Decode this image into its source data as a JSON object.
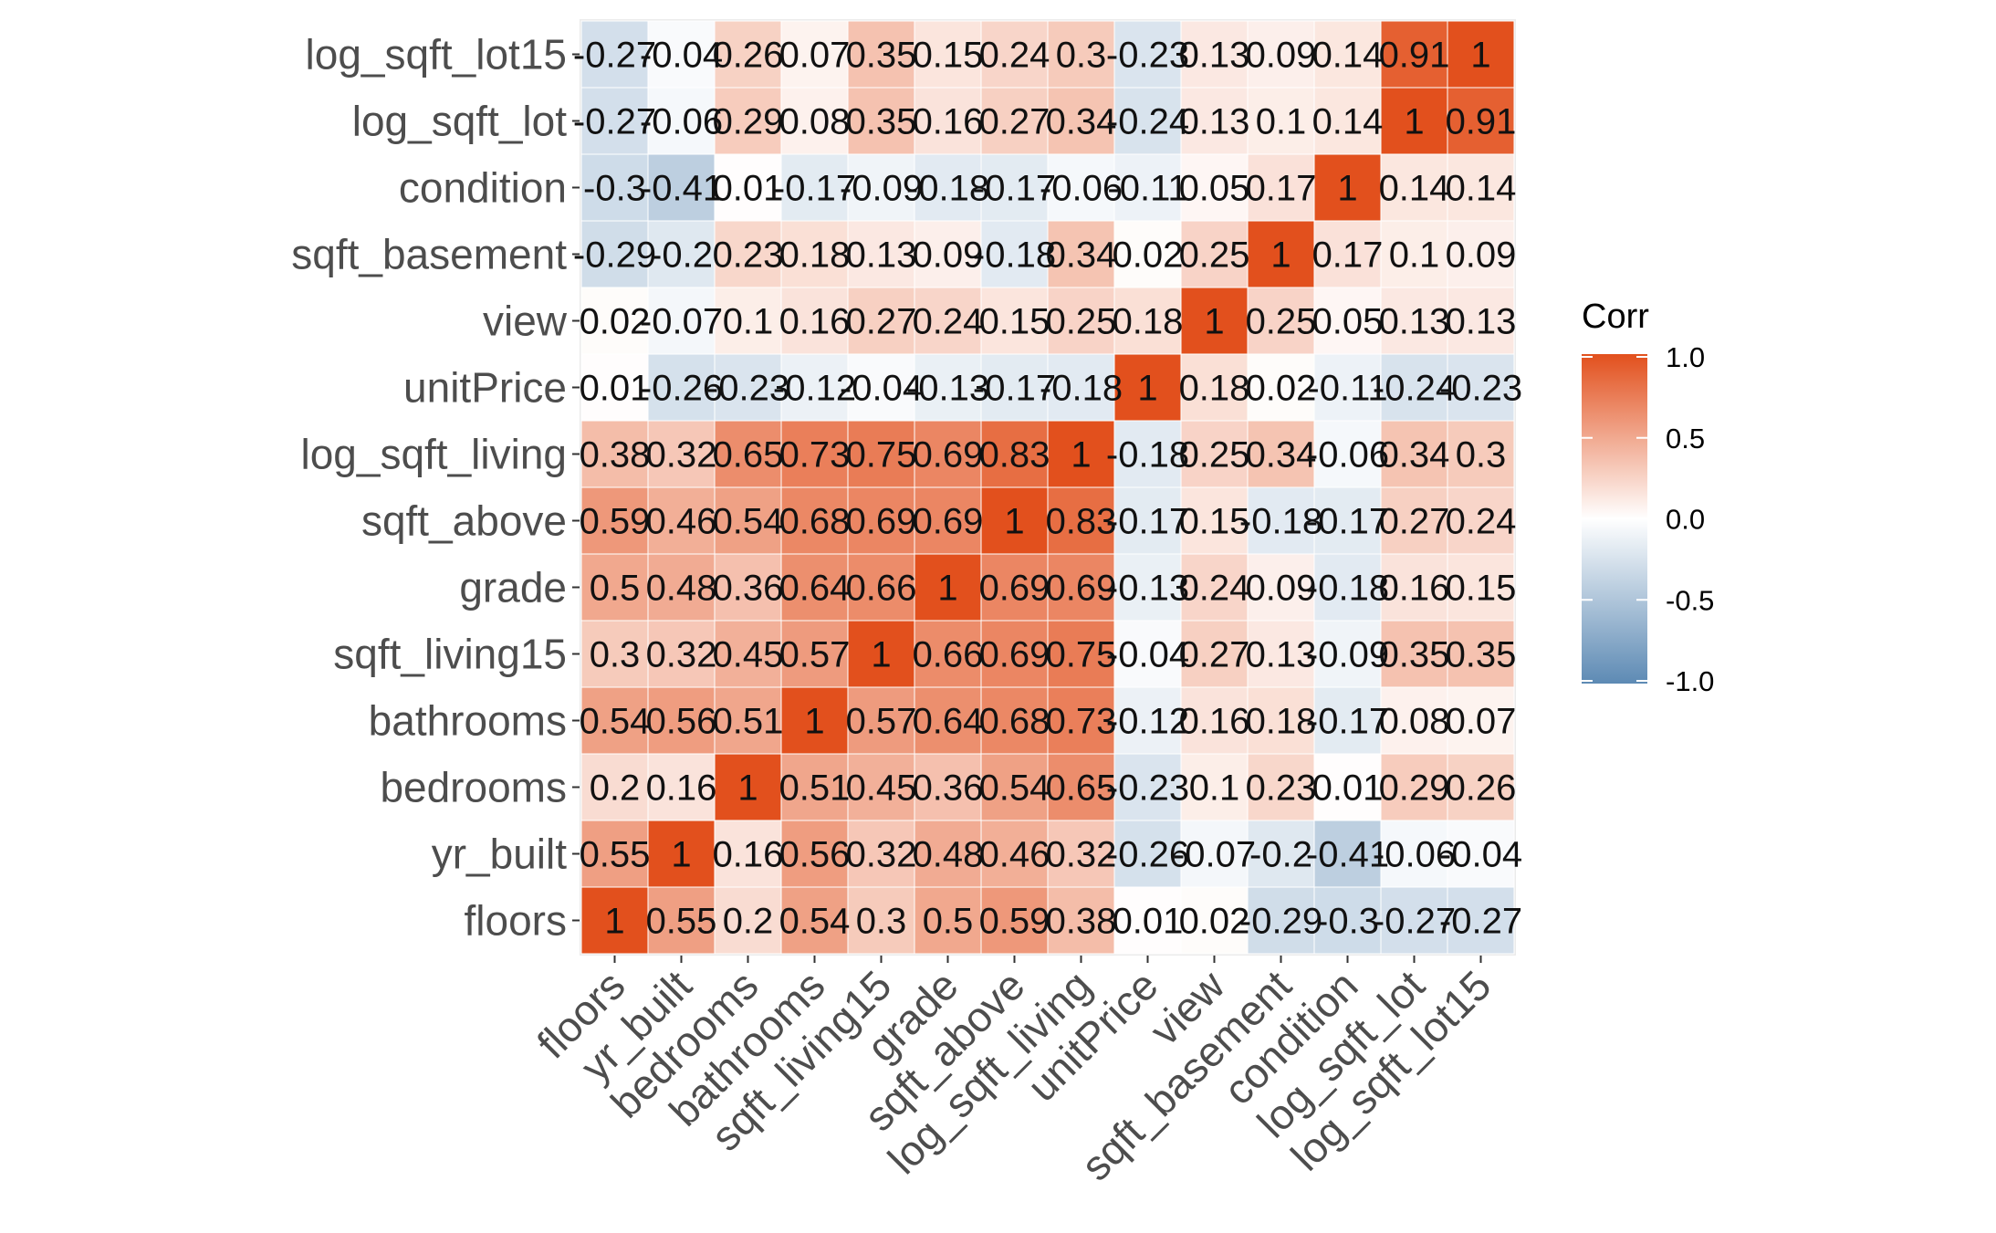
{
  "chart_data": {
    "type": "heatmap",
    "title": "",
    "xlabel": "",
    "ylabel": "",
    "variables": [
      "floors",
      "yr_built",
      "bedrooms",
      "bathrooms",
      "sqft_living15",
      "grade",
      "sqft_above",
      "log_sqft_living",
      "unitPrice",
      "view",
      "sqft_basement",
      "condition",
      "log_sqft_lot",
      "log_sqft_lot15"
    ],
    "rows": [
      {
        "name": "floors",
        "labels": [
          "1",
          "0.55",
          "0.2",
          "0.54",
          "0.3",
          "0.5",
          "0.59",
          "0.38",
          "0.01",
          "0.02",
          "-0.29",
          "-0.3",
          "-0.27",
          "-0.27"
        ]
      },
      {
        "name": "yr_built",
        "labels": [
          "0.55",
          "1",
          "0.16",
          "0.56",
          "0.32",
          "0.48",
          "0.46",
          "0.32",
          "-0.26",
          "-0.07",
          "-0.2",
          "-0.41",
          "-0.06",
          "-0.04"
        ]
      },
      {
        "name": "bedrooms",
        "labels": [
          "0.2",
          "0.16",
          "1",
          "0.51",
          "0.45",
          "0.36",
          "0.54",
          "0.65",
          "-0.23",
          "0.1",
          "0.23",
          "0.01",
          "0.29",
          "0.26"
        ]
      },
      {
        "name": "bathrooms",
        "labels": [
          "0.54",
          "0.56",
          "0.51",
          "1",
          "0.57",
          "0.64",
          "0.68",
          "0.73",
          "-0.12",
          "0.16",
          "0.18",
          "-0.17",
          "0.08",
          "0.07"
        ]
      },
      {
        "name": "sqft_living15",
        "labels": [
          "0.3",
          "0.32",
          "0.45",
          "0.57",
          "1",
          "0.66",
          "0.69",
          "0.75",
          "-0.04",
          "0.27",
          "0.13",
          "-0.09",
          "0.35",
          "0.35"
        ]
      },
      {
        "name": "grade",
        "labels": [
          "0.5",
          "0.48",
          "0.36",
          "0.64",
          "0.66",
          "1",
          "0.69",
          "0.69",
          "-0.13",
          "0.24",
          "0.09",
          "-0.18",
          "0.16",
          "0.15"
        ]
      },
      {
        "name": "sqft_above",
        "labels": [
          "0.59",
          "0.46",
          "0.54",
          "0.68",
          "0.69",
          "0.69",
          "1",
          "0.83",
          "-0.17",
          "0.15",
          "-0.18",
          "-0.17",
          "0.27",
          "0.24"
        ]
      },
      {
        "name": "log_sqft_living",
        "labels": [
          "0.38",
          "0.32",
          "0.65",
          "0.73",
          "0.75",
          "0.69",
          "0.83",
          "1",
          "-0.18",
          "0.25",
          "0.34",
          "-0.06",
          "0.34",
          "0.3"
        ]
      },
      {
        "name": "unitPrice",
        "labels": [
          "0.01",
          "-0.26",
          "-0.23",
          "-0.12",
          "-0.04",
          "-0.13",
          "-0.17",
          "-0.18",
          "1",
          "0.18",
          "0.02",
          "-0.11",
          "-0.24",
          "-0.23"
        ]
      },
      {
        "name": "view",
        "labels": [
          "0.02",
          "-0.07",
          "0.1",
          "0.16",
          "0.27",
          "0.24",
          "0.15",
          "0.25",
          "0.18",
          "1",
          "0.25",
          "0.05",
          "0.13",
          "0.13"
        ]
      },
      {
        "name": "sqft_basement",
        "labels": [
          "-0.29",
          "-0.2",
          "0.23",
          "0.18",
          "0.13",
          "0.09",
          "-0.18",
          "0.34",
          "0.02",
          "0.25",
          "1",
          "0.17",
          "0.1",
          "0.09"
        ]
      },
      {
        "name": "condition",
        "labels": [
          "-0.3",
          "-0.41",
          "0.01",
          "-0.17",
          "-0.09",
          "-0.18",
          "-0.17",
          "-0.06",
          "-0.11",
          "0.05",
          "0.17",
          "1",
          "0.14",
          "0.14"
        ]
      },
      {
        "name": "log_sqft_lot",
        "labels": [
          "-0.27",
          "-0.06",
          "0.29",
          "0.08",
          "0.35",
          "0.16",
          "0.27",
          "0.34",
          "-0.24",
          "0.13",
          "0.1",
          "0.14",
          "1",
          "0.91"
        ]
      },
      {
        "name": "log_sqft_lot15",
        "labels": [
          "-0.27",
          "-0.04",
          "0.26",
          "0.07",
          "0.35",
          "0.15",
          "0.24",
          "0.3",
          "-0.23",
          "0.13",
          "0.09",
          "0.14",
          "0.91",
          "1"
        ]
      }
    ],
    "legend": {
      "title": "Corr",
      "tick_labels": [
        "1.0",
        "0.5",
        "0.0",
        "-0.5",
        "-1.0"
      ],
      "range": [
        -1,
        1
      ],
      "colors": {
        "low": "#5d8ab4",
        "mid": "#ffffff",
        "high": "#e2501d"
      },
      "placement": "right"
    },
    "panel_background": "#ebebeb",
    "grid": true
  }
}
